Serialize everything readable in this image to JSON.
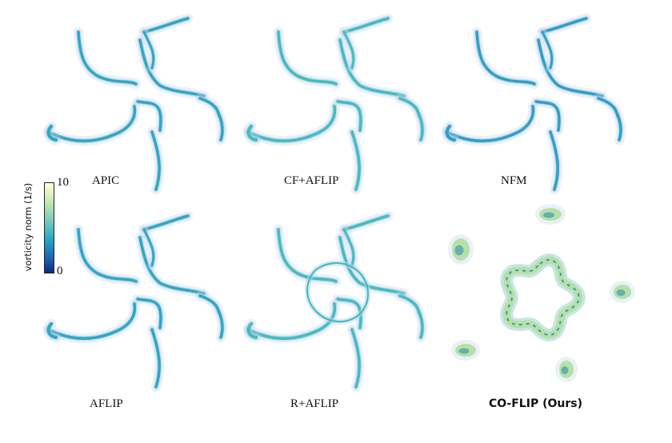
{
  "colorbar": {
    "label": "vorticity norm (1/s)",
    "max_label": "10",
    "min_label": "0",
    "colors": [
      "#ffffd9",
      "#c7e9b4",
      "#7fcdbb",
      "#41b6c4",
      "#1d91c0",
      "#225ea8",
      "#0c2c84"
    ]
  },
  "panels": [
    {
      "caption": "APIC",
      "pattern": "pinwheel",
      "accent": "#2fa7c4"
    },
    {
      "caption": "CF+AFLIP",
      "pattern": "pinwheel",
      "accent": "#43bcc0"
    },
    {
      "caption": "NFM",
      "pattern": "pinwheel",
      "accent": "#2f9fc8"
    },
    {
      "caption": "AFLIP",
      "pattern": "pinwheel",
      "accent": "#2fa7c4"
    },
    {
      "caption": "R+AFLIP",
      "pattern": "pinwheel-ring",
      "accent": "#43bcc0"
    },
    {
      "caption": "CO-FLIP (Ours)",
      "pattern": "ring-islands",
      "accent": "#b7e0a6"
    }
  ]
}
